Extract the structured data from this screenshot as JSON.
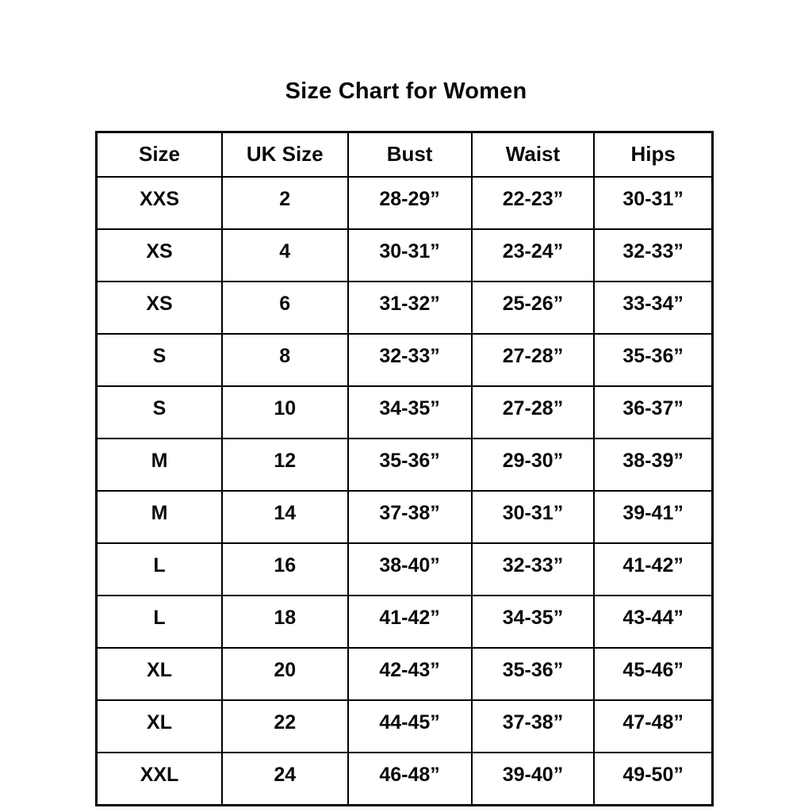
{
  "title": "Size Chart for Women",
  "colors": {
    "background": "#ffffff",
    "text": "#0a0a0a",
    "border": "#000000"
  },
  "chart_data": {
    "type": "table",
    "title": "Size Chart for Women",
    "columns": [
      "Size",
      "UK Size",
      "Bust",
      "Waist",
      "Hips"
    ],
    "rows": [
      [
        "XXS",
        "2",
        "28-29”",
        "22-23”",
        "30-31”"
      ],
      [
        "XS",
        "4",
        "30-31”",
        "23-24”",
        "32-33”"
      ],
      [
        "XS",
        "6",
        "31-32”",
        "25-26”",
        "33-34”"
      ],
      [
        "S",
        "8",
        "32-33”",
        "27-28”",
        "35-36”"
      ],
      [
        "S",
        "10",
        "34-35”",
        "27-28”",
        "36-37”"
      ],
      [
        "M",
        "12",
        "35-36”",
        "29-30”",
        "38-39”"
      ],
      [
        "M",
        "14",
        "37-38”",
        "30-31”",
        "39-41”"
      ],
      [
        "L",
        "16",
        "38-40”",
        "32-33”",
        "41-42”"
      ],
      [
        "L",
        "18",
        "41-42”",
        "34-35”",
        "43-44”"
      ],
      [
        "XL",
        "20",
        "42-43”",
        "35-36”",
        "45-46”"
      ],
      [
        "XL",
        "22",
        "44-45”",
        "37-38”",
        "47-48”"
      ],
      [
        "XXL",
        "24",
        "46-48”",
        "39-40”",
        "49-50”"
      ]
    ]
  }
}
